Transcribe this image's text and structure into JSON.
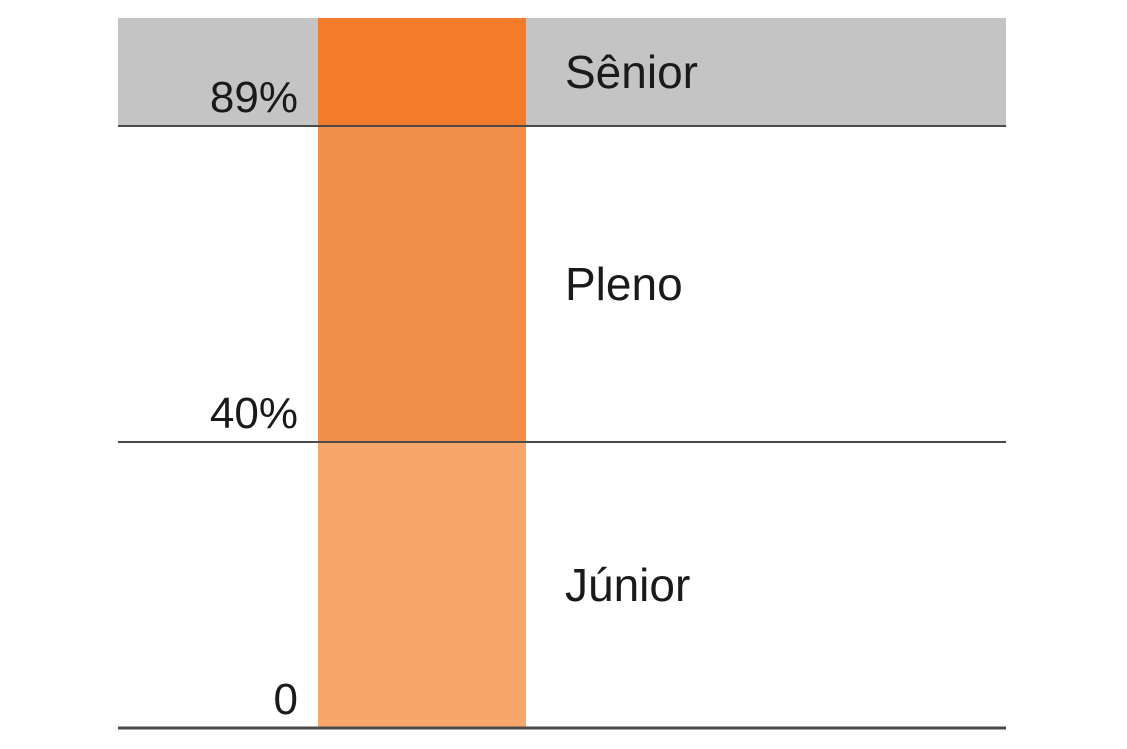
{
  "chart_data": {
    "type": "bar",
    "title": "",
    "xlabel": "",
    "ylabel": "",
    "ylim": [
      0,
      100
    ],
    "bands": [
      {
        "label": "Júnior",
        "from": 0,
        "to": 40,
        "color": "#F9A66B",
        "highlight": false
      },
      {
        "label": "Pleno",
        "from": 40,
        "to": 89,
        "color": "#F08E4A",
        "highlight": false
      },
      {
        "label": "Sênior",
        "from": 89,
        "to": 100,
        "color": "#F47B2A",
        "highlight": true,
        "row_color": "#C4C4C4"
      }
    ],
    "ticks": [
      {
        "value": 0,
        "label": "0"
      },
      {
        "value": 40,
        "label": "40%"
      },
      {
        "value": 89,
        "label": "89%"
      }
    ]
  }
}
